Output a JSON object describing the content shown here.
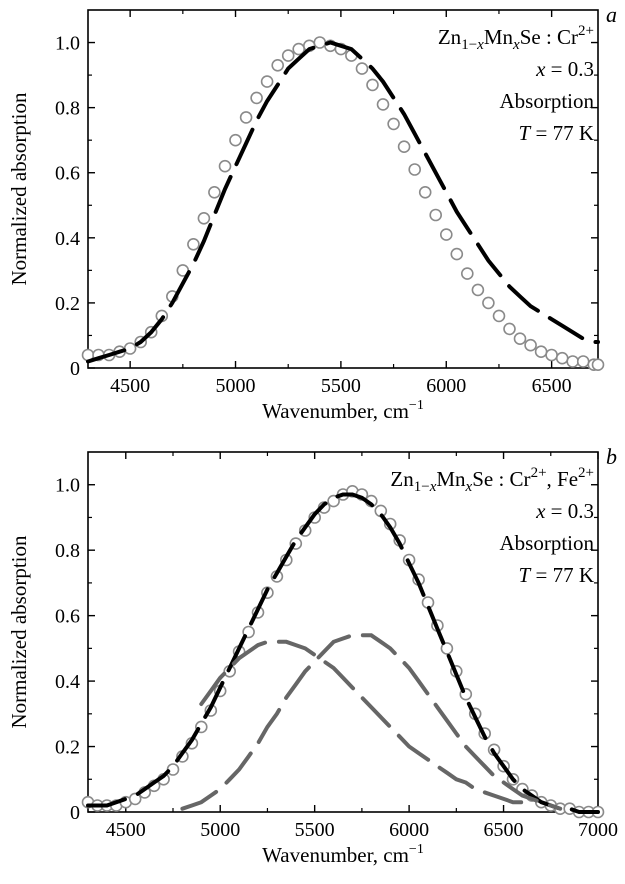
{
  "chart_data": [
    {
      "panel_label": "a",
      "type": "scatter",
      "xlabel": "Wavenumber, cm",
      "xlabel_sup": "−1",
      "ylabel": "Normalized absorption",
      "xlim": [
        4300,
        6720
      ],
      "ylim": [
        0,
        1.1
      ],
      "xticks": [
        4500,
        5000,
        5500,
        6000,
        6500
      ],
      "xtick_labels": [
        "4500",
        "5000",
        "5500",
        "6000",
        "6500"
      ],
      "yticks": [
        0,
        0.2,
        0.4,
        0.6,
        0.8,
        1.0
      ],
      "ytick_labels": [
        "0",
        "0.2",
        "0.4",
        "0.6",
        "0.8",
        "1.0"
      ],
      "annotation": {
        "compound": {
          "base1": "Zn",
          "sub1": "1−",
          "sub1_var": "x",
          "base2": "Mn",
          "sub2": "x",
          "base3": "Se : Cr",
          "sup3": "2+",
          "suffix": ""
        },
        "composition": {
          "var": "x",
          "rest": " = 0.3"
        },
        "method": "Absorption",
        "temperature": {
          "var": "T",
          "rest": " = 77 K"
        }
      },
      "series": [
        {
          "style": "open-circles",
          "color": "#8a8a8a",
          "x": [
            4300,
            4350,
            4400,
            4450,
            4500,
            4550,
            4600,
            4650,
            4700,
            4750,
            4800,
            4850,
            4900,
            4950,
            5000,
            5050,
            5100,
            5150,
            5200,
            5250,
            5300,
            5350,
            5400,
            5450,
            5500,
            5550,
            5600,
            5650,
            5700,
            5750,
            5800,
            5850,
            5900,
            5950,
            6000,
            6050,
            6100,
            6150,
            6200,
            6250,
            6300,
            6350,
            6400,
            6450,
            6500,
            6550,
            6600,
            6650,
            6700,
            6720
          ],
          "y": [
            0.04,
            0.04,
            0.04,
            0.05,
            0.06,
            0.08,
            0.11,
            0.16,
            0.22,
            0.3,
            0.38,
            0.46,
            0.54,
            0.62,
            0.7,
            0.77,
            0.83,
            0.88,
            0.93,
            0.96,
            0.98,
            0.99,
            1.0,
            0.99,
            0.98,
            0.96,
            0.92,
            0.87,
            0.81,
            0.75,
            0.68,
            0.61,
            0.54,
            0.47,
            0.41,
            0.35,
            0.29,
            0.24,
            0.2,
            0.16,
            0.12,
            0.09,
            0.07,
            0.05,
            0.04,
            0.03,
            0.02,
            0.02,
            0.01,
            0.01
          ]
        },
        {
          "style": "dashed",
          "color": "#000000",
          "x": [
            4300,
            4350,
            4400,
            4450,
            4500,
            4550,
            4600,
            4650,
            4700,
            4750,
            4800,
            4850,
            4900,
            4950,
            5000,
            5050,
            5100,
            5150,
            5200,
            5250,
            5300,
            5350,
            5400,
            5450,
            5500,
            5550,
            5600,
            5650,
            5700,
            5750,
            5800,
            5850,
            5900,
            5950,
            6000,
            6050,
            6100,
            6150,
            6200,
            6250,
            6300,
            6350,
            6400,
            6450,
            6500,
            6550,
            6600,
            6650,
            6700,
            6720
          ],
          "y": [
            0.02,
            0.03,
            0.04,
            0.05,
            0.06,
            0.08,
            0.11,
            0.15,
            0.2,
            0.26,
            0.32,
            0.39,
            0.47,
            0.55,
            0.62,
            0.69,
            0.76,
            0.82,
            0.87,
            0.92,
            0.95,
            0.98,
            0.99,
            1.0,
            0.99,
            0.98,
            0.95,
            0.92,
            0.88,
            0.83,
            0.78,
            0.72,
            0.66,
            0.6,
            0.54,
            0.48,
            0.43,
            0.38,
            0.33,
            0.29,
            0.25,
            0.22,
            0.19,
            0.17,
            0.15,
            0.13,
            0.11,
            0.09,
            0.08,
            0.08
          ]
        }
      ]
    },
    {
      "panel_label": "b",
      "type": "scatter",
      "xlabel": "Wavenumber, cm",
      "xlabel_sup": "−1",
      "ylabel": "Normalized absorption",
      "xlim": [
        4300,
        7000
      ],
      "ylim": [
        0,
        1.1
      ],
      "xticks": [
        4500,
        5000,
        5500,
        6000,
        6500,
        7000
      ],
      "xtick_labels": [
        "4500",
        "5000",
        "5500",
        "6000",
        "6500",
        "7000"
      ],
      "yticks": [
        0,
        0.2,
        0.4,
        0.6,
        0.8,
        1.0
      ],
      "ytick_labels": [
        "0",
        "0.2",
        "0.4",
        "0.6",
        "0.8",
        "1.0"
      ],
      "annotation": {
        "compound": {
          "base1": "Zn",
          "sub1": "1−",
          "sub1_var": "x",
          "base2": "Mn",
          "sub2": "x",
          "base3": "Se : Cr",
          "sup3": "2+",
          "suffix": ", Fe",
          "suffix_sup": "2+"
        },
        "composition": {
          "var": "x",
          "rest": " = 0.3"
        },
        "method": "Absorption",
        "temperature": {
          "var": "T",
          "rest": " = 77 K"
        }
      },
      "series": [
        {
          "style": "open-circles",
          "color": "#8a8a8a",
          "x": [
            4300,
            4350,
            4400,
            4450,
            4500,
            4550,
            4600,
            4650,
            4700,
            4750,
            4800,
            4850,
            4900,
            4950,
            5000,
            5050,
            5100,
            5150,
            5200,
            5250,
            5300,
            5350,
            5400,
            5450,
            5500,
            5550,
            5600,
            5650,
            5700,
            5750,
            5800,
            5850,
            5900,
            5950,
            6000,
            6050,
            6100,
            6150,
            6200,
            6250,
            6300,
            6350,
            6400,
            6450,
            6500,
            6550,
            6600,
            6650,
            6700,
            6750,
            6800,
            6850,
            6900,
            6950,
            7000
          ],
          "y": [
            0.03,
            0.02,
            0.02,
            0.02,
            0.03,
            0.04,
            0.06,
            0.08,
            0.1,
            0.13,
            0.17,
            0.21,
            0.26,
            0.31,
            0.37,
            0.43,
            0.49,
            0.55,
            0.61,
            0.67,
            0.72,
            0.77,
            0.82,
            0.86,
            0.9,
            0.93,
            0.95,
            0.97,
            0.98,
            0.97,
            0.95,
            0.92,
            0.88,
            0.83,
            0.77,
            0.71,
            0.64,
            0.57,
            0.5,
            0.43,
            0.36,
            0.3,
            0.24,
            0.19,
            0.14,
            0.1,
            0.07,
            0.05,
            0.03,
            0.02,
            0.01,
            0.01,
            0.0,
            0.0,
            0.0
          ]
        },
        {
          "style": "dashed",
          "color": "#000000",
          "x": [
            4300,
            4350,
            4400,
            4450,
            4500,
            4550,
            4600,
            4650,
            4700,
            4750,
            4800,
            4850,
            4900,
            4950,
            5000,
            5050,
            5100,
            5150,
            5200,
            5250,
            5300,
            5350,
            5400,
            5450,
            5500,
            5550,
            5600,
            5650,
            5700,
            5750,
            5800,
            5850,
            5900,
            5950,
            6000,
            6050,
            6100,
            6150,
            6200,
            6250,
            6300,
            6350,
            6400,
            6450,
            6500,
            6550,
            6600,
            6650,
            6700,
            6750,
            6800,
            6850,
            6900,
            6950,
            7000
          ],
          "y": [
            0.02,
            0.02,
            0.02,
            0.03,
            0.04,
            0.05,
            0.07,
            0.09,
            0.11,
            0.14,
            0.18,
            0.22,
            0.27,
            0.32,
            0.38,
            0.44,
            0.5,
            0.56,
            0.62,
            0.68,
            0.73,
            0.78,
            0.83,
            0.87,
            0.91,
            0.94,
            0.96,
            0.97,
            0.97,
            0.96,
            0.94,
            0.91,
            0.87,
            0.82,
            0.76,
            0.7,
            0.63,
            0.56,
            0.49,
            0.42,
            0.35,
            0.29,
            0.23,
            0.18,
            0.14,
            0.1,
            0.07,
            0.05,
            0.03,
            0.02,
            0.01,
            0.01,
            0.0,
            0.0,
            0.0
          ]
        },
        {
          "style": "dashed",
          "color": "#666666",
          "x": [
            4900,
            4950,
            5000,
            5050,
            5100,
            5150,
            5200,
            5250,
            5300,
            5350,
            5400,
            5450,
            5500,
            5550,
            5600,
            5650,
            5700,
            5750,
            5800,
            5850,
            5900,
            5950,
            6000,
            6050,
            6100,
            6150,
            6200,
            6250,
            6300,
            6350,
            6400,
            6450,
            6500,
            6550,
            6600
          ],
          "y": [
            0.33,
            0.37,
            0.41,
            0.44,
            0.47,
            0.49,
            0.51,
            0.52,
            0.52,
            0.52,
            0.51,
            0.5,
            0.48,
            0.46,
            0.44,
            0.41,
            0.38,
            0.35,
            0.32,
            0.29,
            0.26,
            0.23,
            0.2,
            0.18,
            0.16,
            0.14,
            0.12,
            0.1,
            0.09,
            0.07,
            0.06,
            0.05,
            0.04,
            0.03,
            0.03
          ]
        },
        {
          "style": "dashed",
          "color": "#666666",
          "x": [
            4800,
            4850,
            4900,
            4950,
            5000,
            5050,
            5100,
            5150,
            5200,
            5250,
            5300,
            5350,
            5400,
            5450,
            5500,
            5550,
            5600,
            5650,
            5700,
            5750,
            5800,
            5850,
            5900,
            5950,
            6000,
            6050,
            6100,
            6150,
            6200,
            6250,
            6300,
            6350,
            6400,
            6450,
            6500,
            6550,
            6600,
            6650,
            6700,
            6750,
            6800
          ],
          "y": [
            0.01,
            0.02,
            0.03,
            0.05,
            0.07,
            0.1,
            0.13,
            0.17,
            0.21,
            0.26,
            0.3,
            0.35,
            0.39,
            0.43,
            0.46,
            0.49,
            0.52,
            0.53,
            0.54,
            0.54,
            0.54,
            0.52,
            0.5,
            0.47,
            0.44,
            0.4,
            0.36,
            0.32,
            0.28,
            0.24,
            0.2,
            0.17,
            0.14,
            0.11,
            0.09,
            0.07,
            0.05,
            0.04,
            0.03,
            0.02,
            0.01
          ]
        }
      ]
    }
  ]
}
